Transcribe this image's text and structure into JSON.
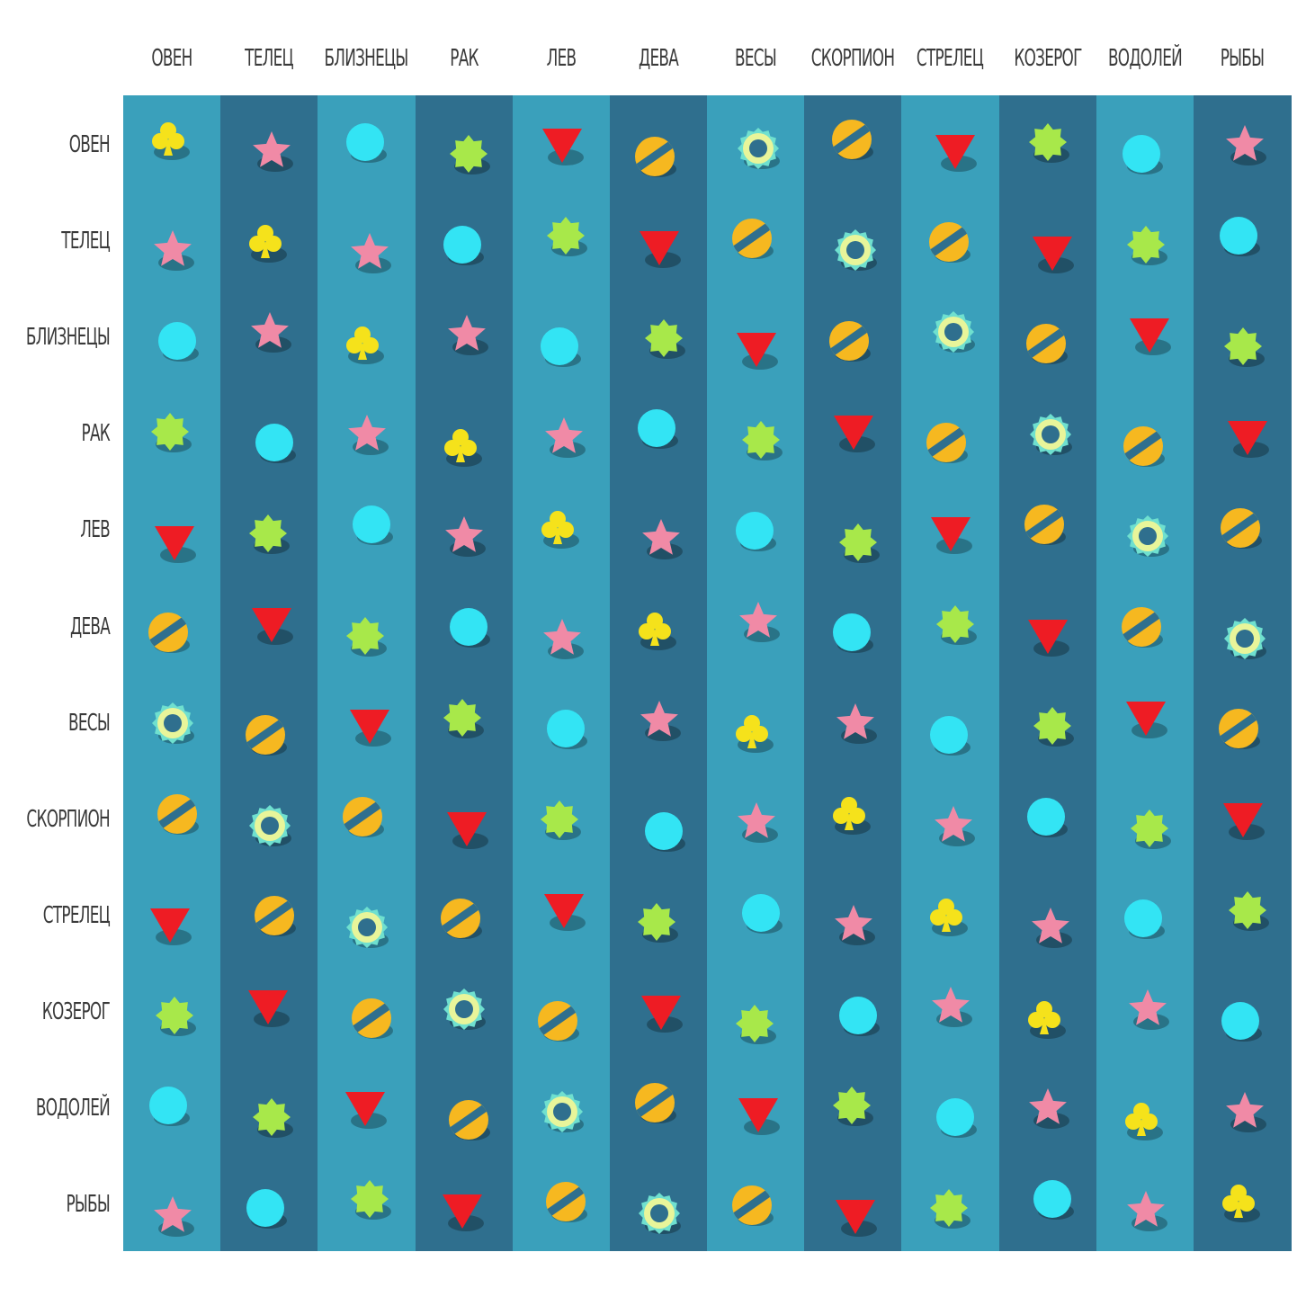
{
  "signs": [
    "ОВЕН",
    "ТЕЛЕЦ",
    "БЛИЗНЕЦЫ",
    "РАК",
    "ЛЕВ",
    "ДЕВА",
    "ВЕСЫ",
    "СКОРПИОН",
    "СТРЕЛЕЦ",
    "КОЗЕРОГ",
    "ВОДОЛЕЙ",
    "РЫБЫ"
  ],
  "colors": {
    "stripe_light": "#3aa0bb",
    "stripe_dark": "#2f6f8e",
    "club": "#f5e21b",
    "star": "#f08aa6",
    "circle": "#33e4f4",
    "burst": "#a8e84a",
    "triangle": "#ee1c24",
    "striped": "#f6b820",
    "ring": "#e8f59a",
    "label": "#3a3a3a"
  },
  "legend": {
    "club": "club-icon",
    "star": "star-icon",
    "circle": "circle-icon",
    "burst": "burst-icon",
    "triangle": "triangle-icon",
    "striped": "striped-circle-icon",
    "ring": "ring-icon"
  },
  "matrix": [
    [
      "club",
      "star",
      "circle",
      "burst",
      "triangle",
      "striped",
      "ring",
      "striped",
      "triangle",
      "burst",
      "circle",
      "star"
    ],
    [
      "star",
      "club",
      "star",
      "circle",
      "burst",
      "triangle",
      "striped",
      "ring",
      "striped",
      "triangle",
      "burst",
      "circle"
    ],
    [
      "circle",
      "star",
      "club",
      "star",
      "circle",
      "burst",
      "triangle",
      "striped",
      "ring",
      "striped",
      "triangle",
      "burst"
    ],
    [
      "burst",
      "circle",
      "star",
      "club",
      "star",
      "circle",
      "burst",
      "triangle",
      "striped",
      "ring",
      "striped",
      "triangle"
    ],
    [
      "triangle",
      "burst",
      "circle",
      "star",
      "club",
      "star",
      "circle",
      "burst",
      "triangle",
      "striped",
      "ring",
      "striped"
    ],
    [
      "striped",
      "triangle",
      "burst",
      "circle",
      "star",
      "club",
      "star",
      "circle",
      "burst",
      "triangle",
      "striped",
      "ring"
    ],
    [
      "ring",
      "striped",
      "triangle",
      "burst",
      "circle",
      "star",
      "club",
      "star",
      "circle",
      "burst",
      "triangle",
      "striped"
    ],
    [
      "striped",
      "ring",
      "striped",
      "triangle",
      "burst",
      "circle",
      "star",
      "club",
      "star",
      "circle",
      "burst",
      "triangle"
    ],
    [
      "triangle",
      "striped",
      "ring",
      "striped",
      "triangle",
      "burst",
      "circle",
      "star",
      "club",
      "star",
      "circle",
      "burst"
    ],
    [
      "burst",
      "triangle",
      "striped",
      "ring",
      "striped",
      "triangle",
      "burst",
      "circle",
      "star",
      "club",
      "star",
      "circle"
    ],
    [
      "circle",
      "burst",
      "triangle",
      "striped",
      "ring",
      "striped",
      "triangle",
      "burst",
      "circle",
      "star",
      "club",
      "star"
    ],
    [
      "star",
      "circle",
      "burst",
      "triangle",
      "striped",
      "ring",
      "striped",
      "triangle",
      "burst",
      "circle",
      "star",
      "club"
    ]
  ]
}
